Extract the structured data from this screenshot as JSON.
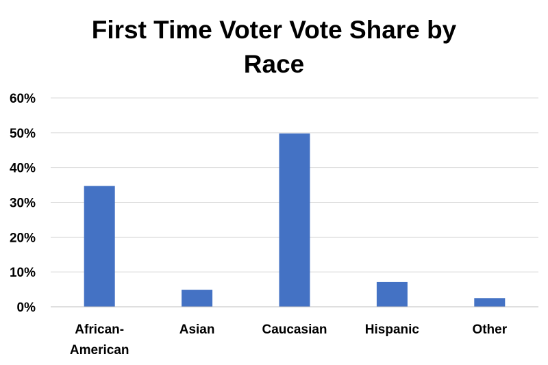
{
  "chart_data": {
    "type": "bar",
    "title": "First Time Voter Vote Share by Race",
    "title_lines": [
      "First Time Voter Vote Share by",
      "Race"
    ],
    "categories": [
      "African-American",
      "Asian",
      "Caucasian",
      "Hispanic",
      "Other"
    ],
    "category_lines": [
      [
        "African-",
        "American"
      ],
      [
        "Asian"
      ],
      [
        "Caucasian"
      ],
      [
        "Hispanic"
      ],
      [
        "Other"
      ]
    ],
    "values": [
      34.7,
      4.9,
      49.8,
      7.1,
      2.5
    ],
    "y_tick_labels": [
      "0%",
      "10%",
      "20%",
      "30%",
      "40%",
      "50%",
      "60%"
    ],
    "ylim": [
      0,
      60
    ],
    "grid": true,
    "legend": "none",
    "bar_color": "#4472c4",
    "xlabel": "",
    "ylabel": ""
  }
}
